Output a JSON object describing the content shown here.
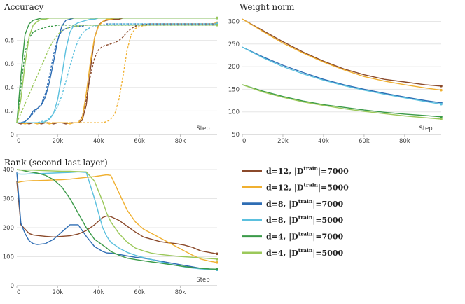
{
  "series_meta": [
    {
      "key": "d12_7000",
      "name": "d=12, |D|=7000",
      "depth": "d=12, |D",
      "sup": "train",
      "tail": "|=7000",
      "color": "#8B4A2B"
    },
    {
      "key": "d12_5000",
      "name": "d=12, |D|=5000",
      "depth": "d=12, |D",
      "sup": "train",
      "tail": "|=5000",
      "color": "#F0B030"
    },
    {
      "key": "d8_7000",
      "name": "d=8, |D|=7000",
      "depth": "d=8, |D",
      "sup": "train",
      "tail": "|=7000",
      "color": "#2E6DB4"
    },
    {
      "key": "d8_5000",
      "name": "d=8, |D|=5000",
      "depth": "d=8, |D",
      "sup": "train",
      "tail": "|=5000",
      "color": "#5BC0DE"
    },
    {
      "key": "d4_7000",
      "name": "d=4, |D|=7000",
      "depth": "d=4, |D",
      "sup": "train",
      "tail": "|=7000",
      "color": "#3A9A48"
    },
    {
      "key": "d4_5000",
      "name": "d=4, |D|=5000",
      "depth": "d=4, |D",
      "sup": "train",
      "tail": "|=5000",
      "color": "#9BC85A"
    }
  ],
  "chart_data": [
    {
      "id": "accuracy",
      "type": "line",
      "title": "Accuracy",
      "xlabel": "Step",
      "xlim": [
        0,
        98000
      ],
      "ylim": [
        0,
        1.0
      ],
      "xticks": [
        0,
        20000,
        40000,
        60000,
        80000
      ],
      "xtick_labels": [
        "0",
        "20k",
        "40k",
        "60k",
        "80k"
      ],
      "yticks": [
        0,
        0.2,
        0.4,
        0.6,
        0.8
      ],
      "ytick_labels": [
        "0",
        "0.2",
        "0.4",
        "0.6",
        "0.8"
      ],
      "x": [
        0,
        2000,
        4000,
        6000,
        8000,
        10000,
        12000,
        14000,
        16000,
        18000,
        20000,
        22000,
        24000,
        26000,
        28000,
        30000,
        32000,
        34000,
        36000,
        38000,
        40000,
        42000,
        44000,
        46000,
        48000,
        50000,
        52000,
        54000,
        56000,
        58000,
        60000,
        65000,
        70000,
        75000,
        80000,
        85000,
        90000,
        95000,
        98000
      ],
      "series": [
        {
          "key": "d12_7000",
          "style": "solid",
          "values": [
            0.1,
            0.09,
            0.1,
            0.09,
            0.1,
            0.1,
            0.09,
            0.1,
            0.1,
            0.09,
            0.1,
            0.1,
            0.09,
            0.1,
            0.1,
            0.1,
            0.12,
            0.25,
            0.55,
            0.82,
            0.93,
            0.96,
            0.97,
            0.98,
            0.98,
            0.98,
            0.99,
            0.99,
            0.99,
            0.99,
            0.99,
            0.99,
            0.99,
            0.99,
            0.99,
            0.99,
            0.99,
            0.99,
            0.99
          ]
        },
        {
          "key": "d12_7000",
          "style": "dashed",
          "values": [
            0.1,
            0.1,
            0.1,
            0.1,
            0.1,
            0.1,
            0.1,
            0.1,
            0.1,
            0.1,
            0.1,
            0.1,
            0.1,
            0.1,
            0.1,
            0.1,
            0.15,
            0.3,
            0.5,
            0.65,
            0.72,
            0.75,
            0.76,
            0.77,
            0.78,
            0.8,
            0.83,
            0.87,
            0.9,
            0.92,
            0.93,
            0.94,
            0.94,
            0.94,
            0.94,
            0.94,
            0.94,
            0.94,
            0.94
          ]
        },
        {
          "key": "d12_5000",
          "style": "solid",
          "values": [
            0.1,
            0.1,
            0.09,
            0.1,
            0.1,
            0.09,
            0.1,
            0.1,
            0.09,
            0.1,
            0.1,
            0.1,
            0.1,
            0.09,
            0.1,
            0.1,
            0.14,
            0.35,
            0.62,
            0.82,
            0.92,
            0.96,
            0.98,
            0.98,
            0.99,
            0.99,
            0.99,
            0.99,
            0.99,
            0.99,
            0.99,
            0.99,
            0.99,
            0.99,
            0.99,
            0.99,
            0.99,
            0.99,
            0.99
          ]
        },
        {
          "key": "d12_5000",
          "style": "dashed",
          "values": [
            0.1,
            0.1,
            0.1,
            0.1,
            0.1,
            0.1,
            0.1,
            0.1,
            0.1,
            0.1,
            0.1,
            0.1,
            0.1,
            0.1,
            0.1,
            0.1,
            0.1,
            0.1,
            0.1,
            0.1,
            0.1,
            0.1,
            0.11,
            0.13,
            0.18,
            0.3,
            0.5,
            0.72,
            0.85,
            0.9,
            0.92,
            0.93,
            0.93,
            0.94,
            0.94,
            0.94,
            0.94,
            0.94,
            0.95
          ]
        },
        {
          "key": "d8_7000",
          "style": "solid",
          "values": [
            0.1,
            0.1,
            0.11,
            0.14,
            0.2,
            0.22,
            0.25,
            0.32,
            0.45,
            0.62,
            0.8,
            0.92,
            0.97,
            0.98,
            0.99,
            0.99,
            0.99,
            0.99,
            0.99,
            0.99,
            0.99,
            0.99,
            0.99,
            0.99,
            0.99,
            0.99,
            0.99,
            0.99,
            0.99,
            0.99,
            0.99,
            0.99,
            0.99,
            0.99,
            0.99,
            0.99,
            0.99,
            0.99,
            0.99
          ]
        },
        {
          "key": "d8_7000",
          "style": "dashed",
          "values": [
            0.1,
            0.1,
            0.11,
            0.14,
            0.18,
            0.22,
            0.26,
            0.35,
            0.5,
            0.68,
            0.82,
            0.88,
            0.9,
            0.91,
            0.92,
            0.92,
            0.92,
            0.93,
            0.93,
            0.93,
            0.93,
            0.93,
            0.94,
            0.94,
            0.94,
            0.94,
            0.94,
            0.94,
            0.94,
            0.94,
            0.94,
            0.94,
            0.94,
            0.94,
            0.94,
            0.94,
            0.94,
            0.94,
            0.94
          ]
        },
        {
          "key": "d8_5000",
          "style": "solid",
          "values": [
            0.1,
            0.1,
            0.1,
            0.1,
            0.1,
            0.1,
            0.1,
            0.11,
            0.13,
            0.18,
            0.3,
            0.5,
            0.72,
            0.87,
            0.93,
            0.95,
            0.96,
            0.97,
            0.98,
            0.98,
            0.99,
            0.99,
            0.99,
            0.99,
            0.99,
            0.99,
            0.99,
            0.99,
            0.99,
            0.99,
            0.99,
            0.99,
            0.99,
            0.99,
            0.99,
            0.99,
            0.99,
            0.99,
            0.99
          ]
        },
        {
          "key": "d8_5000",
          "style": "dashed",
          "values": [
            0.1,
            0.1,
            0.1,
            0.1,
            0.1,
            0.1,
            0.11,
            0.12,
            0.14,
            0.18,
            0.24,
            0.33,
            0.45,
            0.58,
            0.7,
            0.8,
            0.86,
            0.89,
            0.91,
            0.92,
            0.93,
            0.93,
            0.93,
            0.94,
            0.94,
            0.94,
            0.94,
            0.94,
            0.94,
            0.94,
            0.94,
            0.94,
            0.94,
            0.94,
            0.94,
            0.94,
            0.94,
            0.94,
            0.94
          ]
        },
        {
          "key": "d4_7000",
          "style": "solid",
          "values": [
            0.1,
            0.5,
            0.85,
            0.94,
            0.97,
            0.98,
            0.99,
            0.99,
            0.99,
            0.99,
            0.99,
            0.99,
            0.99,
            0.99,
            0.99,
            0.99,
            0.99,
            0.99,
            0.99,
            0.99,
            0.99,
            0.99,
            0.99,
            0.99,
            0.99,
            0.99,
            0.99,
            0.99,
            0.99,
            0.99,
            0.99,
            0.99,
            0.99,
            0.99,
            0.99,
            0.99,
            0.99,
            0.99,
            0.99
          ]
        },
        {
          "key": "d4_7000",
          "style": "dashed",
          "values": [
            0.1,
            0.4,
            0.7,
            0.82,
            0.87,
            0.89,
            0.9,
            0.91,
            0.92,
            0.92,
            0.93,
            0.93,
            0.93,
            0.93,
            0.93,
            0.93,
            0.93,
            0.93,
            0.93,
            0.93,
            0.93,
            0.93,
            0.93,
            0.93,
            0.93,
            0.93,
            0.93,
            0.93,
            0.93,
            0.93,
            0.93,
            0.93,
            0.93,
            0.93,
            0.93,
            0.93,
            0.93,
            0.93,
            0.93
          ]
        },
        {
          "key": "d4_5000",
          "style": "solid",
          "values": [
            0.1,
            0.3,
            0.6,
            0.83,
            0.93,
            0.96,
            0.98,
            0.98,
            0.99,
            0.99,
            0.99,
            0.99,
            0.99,
            0.99,
            0.99,
            0.99,
            0.99,
            0.99,
            0.99,
            0.99,
            0.99,
            0.99,
            0.99,
            0.99,
            0.99,
            0.99,
            0.99,
            0.99,
            0.99,
            0.99,
            0.99,
            0.99,
            0.99,
            0.99,
            0.99,
            0.99,
            0.99,
            0.99,
            0.99
          ]
        },
        {
          "key": "d4_5000",
          "style": "dashed",
          "values": [
            0.1,
            0.18,
            0.26,
            0.34,
            0.42,
            0.5,
            0.58,
            0.66,
            0.74,
            0.8,
            0.85,
            0.88,
            0.9,
            0.91,
            0.92,
            0.92,
            0.93,
            0.93,
            0.93,
            0.93,
            0.93,
            0.93,
            0.93,
            0.93,
            0.93,
            0.93,
            0.93,
            0.93,
            0.93,
            0.93,
            0.93,
            0.93,
            0.93,
            0.93,
            0.93,
            0.93,
            0.93,
            0.93,
            0.93
          ]
        }
      ]
    },
    {
      "id": "weight_norm",
      "type": "line",
      "title": "Weight norm",
      "xlabel": "Step",
      "xlim": [
        0,
        98000
      ],
      "ylim": [
        50,
        310
      ],
      "xticks": [
        0,
        20000,
        40000,
        60000,
        80000
      ],
      "xtick_labels": [
        "0",
        "20k",
        "40k",
        "60k",
        "80k"
      ],
      "yticks": [
        50,
        100,
        150,
        200,
        250,
        300
      ],
      "ytick_labels": [
        "50",
        "100",
        "150",
        "200",
        "250",
        "300"
      ],
      "x": [
        0,
        10000,
        20000,
        30000,
        40000,
        50000,
        60000,
        70000,
        80000,
        90000,
        98000
      ],
      "series": [
        {
          "key": "d12_7000",
          "style": "solid",
          "values": [
            305,
            280,
            255,
            232,
            212,
            195,
            182,
            172,
            166,
            160,
            157
          ]
        },
        {
          "key": "d12_5000",
          "style": "solid",
          "values": [
            305,
            278,
            252,
            230,
            210,
            193,
            178,
            168,
            160,
            153,
            148
          ]
        },
        {
          "key": "d8_7000",
          "style": "solid",
          "values": [
            243,
            222,
            203,
            187,
            172,
            160,
            150,
            141,
            133,
            125,
            120
          ]
        },
        {
          "key": "d8_5000",
          "style": "solid",
          "values": [
            243,
            220,
            200,
            184,
            170,
            158,
            148,
            139,
            131,
            123,
            117
          ]
        },
        {
          "key": "d4_7000",
          "style": "solid",
          "values": [
            160,
            146,
            134,
            124,
            116,
            110,
            104,
            99,
            95,
            92,
            89
          ]
        },
        {
          "key": "d4_5000",
          "style": "solid",
          "values": [
            160,
            144,
            132,
            122,
            114,
            107,
            101,
            96,
            91,
            87,
            84
          ]
        }
      ]
    },
    {
      "id": "rank",
      "type": "line",
      "title": "Rank (second-last layer)",
      "xlabel": "Step",
      "xlim": [
        0,
        98000
      ],
      "ylim": [
        0,
        400
      ],
      "xticks": [
        0,
        20000,
        40000,
        60000,
        80000
      ],
      "xtick_labels": [
        "0",
        "20k",
        "40k",
        "60k",
        "80k"
      ],
      "yticks": [
        0,
        100,
        200,
        300,
        400
      ],
      "ytick_labels": [
        "0",
        "100",
        "200",
        "300",
        "400"
      ],
      "x": [
        0,
        2000,
        4000,
        6000,
        8000,
        10000,
        14000,
        18000,
        22000,
        26000,
        30000,
        34000,
        38000,
        42000,
        44000,
        46000,
        50000,
        54000,
        58000,
        62000,
        66000,
        70000,
        74000,
        78000,
        82000,
        86000,
        90000,
        94000,
        98000
      ],
      "series": [
        {
          "key": "d12_7000",
          "values": [
            360,
            210,
            195,
            180,
            175,
            173,
            170,
            168,
            170,
            172,
            178,
            190,
            210,
            235,
            240,
            238,
            225,
            205,
            185,
            168,
            160,
            152,
            148,
            145,
            140,
            132,
            120,
            115,
            110
          ]
        },
        {
          "key": "d12_5000",
          "values": [
            355,
            358,
            360,
            361,
            362,
            362,
            363,
            364,
            365,
            367,
            370,
            373,
            376,
            380,
            382,
            380,
            320,
            260,
            220,
            195,
            180,
            165,
            150,
            135,
            120,
            105,
            92,
            85,
            80
          ]
        },
        {
          "key": "d8_7000",
          "values": [
            390,
            215,
            180,
            155,
            145,
            142,
            145,
            160,
            185,
            210,
            210,
            170,
            135,
            118,
            113,
            112,
            108,
            103,
            98,
            95,
            90,
            85,
            80,
            75,
            70,
            65,
            60,
            58,
            55
          ]
        },
        {
          "key": "d8_5000",
          "values": [
            385,
            384,
            384,
            385,
            385,
            386,
            387,
            388,
            389,
            390,
            392,
            390,
            300,
            200,
            170,
            150,
            130,
            115,
            105,
            97,
            90,
            83,
            76,
            70,
            65,
            61,
            58,
            56,
            55
          ]
        },
        {
          "key": "d4_7000",
          "values": [
            400,
            398,
            395,
            392,
            390,
            388,
            380,
            365,
            340,
            300,
            250,
            200,
            160,
            140,
            130,
            118,
            105,
            95,
            90,
            86,
            82,
            78,
            74,
            70,
            66,
            63,
            60,
            58,
            57
          ]
        },
        {
          "key": "d4_5000",
          "values": [
            400,
            398,
            398,
            398,
            398,
            397,
            396,
            395,
            394,
            394,
            393,
            392,
            360,
            290,
            250,
            220,
            180,
            150,
            130,
            120,
            112,
            108,
            105,
            102,
            100,
            98,
            96,
            94,
            92
          ]
        }
      ]
    }
  ]
}
